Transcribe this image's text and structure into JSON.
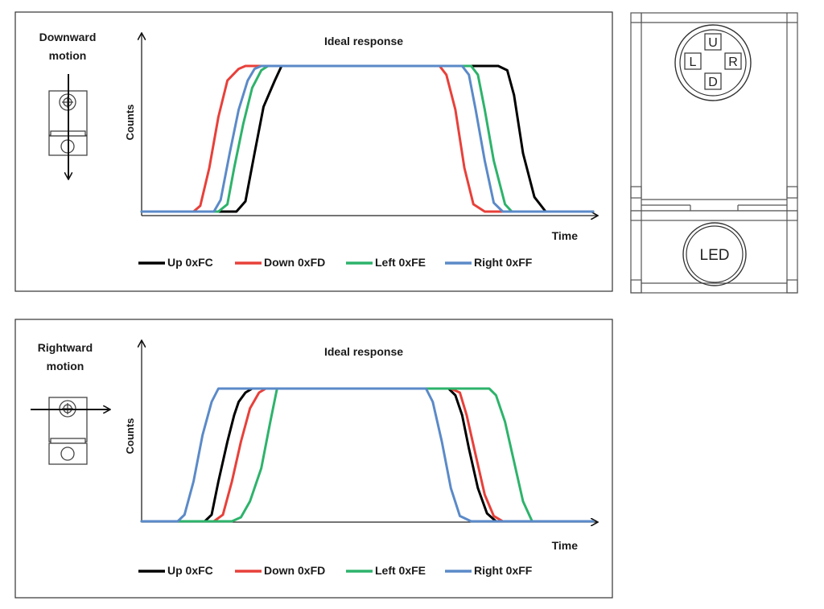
{
  "panels": [
    {
      "motion_label": [
        "Downward",
        "motion"
      ],
      "motion_direction": "down"
    },
    {
      "motion_label": [
        "Rightward",
        "motion"
      ],
      "motion_direction": "right"
    }
  ],
  "chart_data": [
    {
      "type": "line",
      "title": "Ideal response",
      "xlabel": "Time",
      "ylabel": "Counts",
      "xlim": [
        0,
        100
      ],
      "ylim": [
        0,
        100
      ],
      "grid": false,
      "legend_position": "bottom",
      "series": [
        {
          "name": "Up 0xFC",
          "color": "#000000",
          "x": [
            0,
            18,
            21,
            23,
            25,
            27,
            29.5,
            31,
            33,
            79,
            81,
            82.5,
            84.5,
            87,
            89.5,
            100
          ],
          "y": [
            0,
            0,
            0,
            7,
            40,
            72,
            90,
            100,
            100,
            100,
            97,
            80,
            40,
            10,
            0,
            0
          ]
        },
        {
          "name": "Down 0xFD",
          "color": "#e8403a",
          "x": [
            0,
            11.5,
            13,
            15,
            17,
            19,
            21.5,
            23,
            25,
            66,
            67.5,
            69.5,
            71.5,
            73.5,
            76,
            100
          ],
          "y": [
            0,
            0,
            4,
            30,
            65,
            90,
            98,
            100,
            100,
            100,
            94,
            70,
            30,
            5,
            0,
            0
          ]
        },
        {
          "name": "Left 0xFE",
          "color": "#2db36b",
          "x": [
            0,
            17,
            19,
            20.5,
            22.5,
            24.5,
            26.5,
            28,
            73,
            74.5,
            76,
            78,
            80.5,
            82,
            100
          ],
          "y": [
            0,
            0,
            5,
            30,
            60,
            85,
            97,
            100,
            100,
            94,
            70,
            35,
            5,
            0,
            0
          ]
        },
        {
          "name": "Right 0xFF",
          "color": "#5b8ac8",
          "x": [
            0,
            16,
            17.5,
            19.5,
            21.5,
            23.5,
            25,
            26.5,
            71,
            72.5,
            74,
            76,
            78,
            80,
            100
          ],
          "y": [
            0,
            0,
            8,
            40,
            70,
            90,
            98,
            100,
            100,
            94,
            70,
            35,
            6,
            0,
            0
          ]
        }
      ]
    },
    {
      "type": "line",
      "title": "Ideal response",
      "xlabel": "Time",
      "ylabel": "Counts",
      "xlim": [
        0,
        100
      ],
      "ylim": [
        0,
        100
      ],
      "grid": false,
      "legend_position": "bottom",
      "series": [
        {
          "name": "Up 0xFC",
          "color": "#000000",
          "x": [
            0,
            14,
            15.5,
            17,
            19,
            20.5,
            21.5,
            23,
            24.5,
            25.5,
            68,
            69.5,
            71,
            72.5,
            74.5,
            76.5,
            78.5,
            100
          ],
          "y": [
            0,
            0,
            5,
            30,
            60,
            80,
            90,
            97,
            100,
            100,
            100,
            95,
            80,
            55,
            25,
            6,
            0,
            0
          ]
        },
        {
          "name": "Down 0xFD",
          "color": "#e8403a",
          "x": [
            0,
            16,
            18,
            20,
            22,
            24,
            26,
            27.5,
            68.5,
            70.5,
            72,
            74,
            76,
            78,
            80,
            100
          ],
          "y": [
            0,
            0,
            5,
            30,
            60,
            85,
            97,
            100,
            100,
            97,
            80,
            50,
            20,
            4,
            0,
            0
          ]
        },
        {
          "name": "Left 0xFE",
          "color": "#2db36b",
          "x": [
            0,
            20,
            22,
            24,
            26.5,
            28.5,
            30,
            77,
            78.5,
            80.5,
            82.5,
            84.5,
            86.5,
            100
          ],
          "y": [
            0,
            0,
            3,
            15,
            40,
            75,
            100,
            100,
            95,
            75,
            45,
            15,
            0,
            0
          ]
        },
        {
          "name": "Right 0xFF",
          "color": "#5b8ac8",
          "x": [
            0,
            8,
            9.5,
            11.5,
            13.5,
            15.5,
            17,
            63,
            64.5,
            66.5,
            68.5,
            70.5,
            73,
            100
          ],
          "y": [
            0,
            0,
            5,
            30,
            65,
            90,
            100,
            100,
            90,
            60,
            25,
            4,
            0,
            0
          ]
        }
      ]
    }
  ],
  "sensor_diagram": {
    "labels": {
      "up": "U",
      "left": "L",
      "right": "R",
      "down": "D",
      "led": "LED"
    },
    "colors": {
      "up": "#111111",
      "left": "#2db36b",
      "right": "#3a8fcc",
      "down": "#e8403a"
    }
  }
}
